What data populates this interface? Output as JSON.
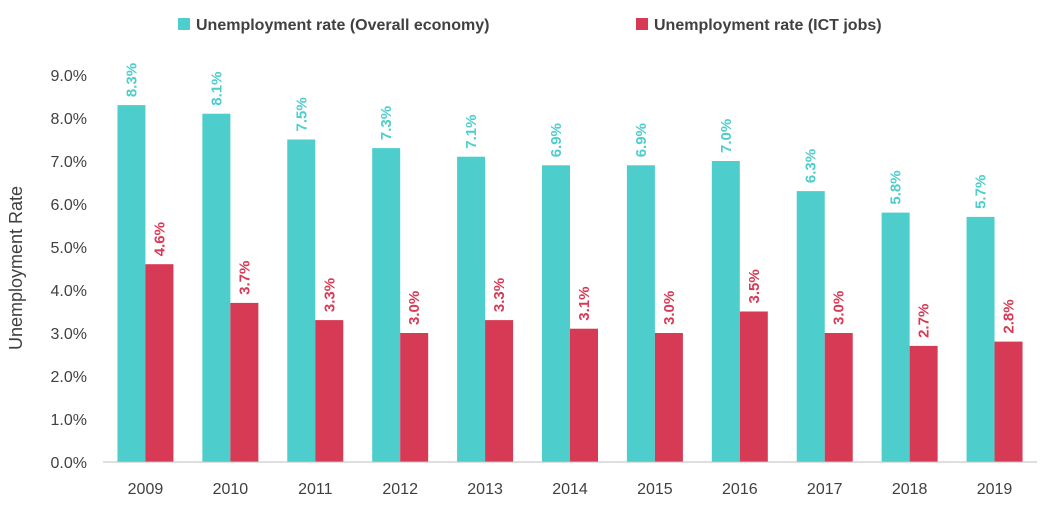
{
  "chart_data": {
    "type": "bar",
    "categories": [
      "2009",
      "2010",
      "2011",
      "2012",
      "2013",
      "2014",
      "2015",
      "2016",
      "2017",
      "2018",
      "2019"
    ],
    "series": [
      {
        "name": "Unemployment rate (Overall economy)",
        "color": "#4ECDCD",
        "values": [
          8.3,
          8.1,
          7.5,
          7.3,
          7.1,
          6.9,
          6.9,
          7.0,
          6.3,
          5.8,
          5.7
        ],
        "labels": [
          "8.3%",
          "8.1%",
          "7.5%",
          "7.3%",
          "7.1%",
          "6.9%",
          "6.9%",
          "7.0%",
          "6.3%",
          "5.8%",
          "5.7%"
        ]
      },
      {
        "name": "Unemployment rate (ICT jobs)",
        "color": "#D63A55",
        "values": [
          4.6,
          3.7,
          3.3,
          3.0,
          3.3,
          3.1,
          3.0,
          3.5,
          3.0,
          2.7,
          2.8
        ],
        "labels": [
          "4.6%",
          "3.7%",
          "3.3%",
          "3.0%",
          "3.3%",
          "3.1%",
          "3.0%",
          "3.5%",
          "3.0%",
          "2.7%",
          "2.8%"
        ]
      }
    ],
    "ylabel": "Unemployment Rate",
    "ylim": [
      0,
      9
    ],
    "yticks": [
      "0.0%",
      "1.0%",
      "2.0%",
      "3.0%",
      "4.0%",
      "5.0%",
      "6.0%",
      "7.0%",
      "8.0%",
      "9.0%"
    ],
    "grid": false,
    "legend_position": "top"
  }
}
